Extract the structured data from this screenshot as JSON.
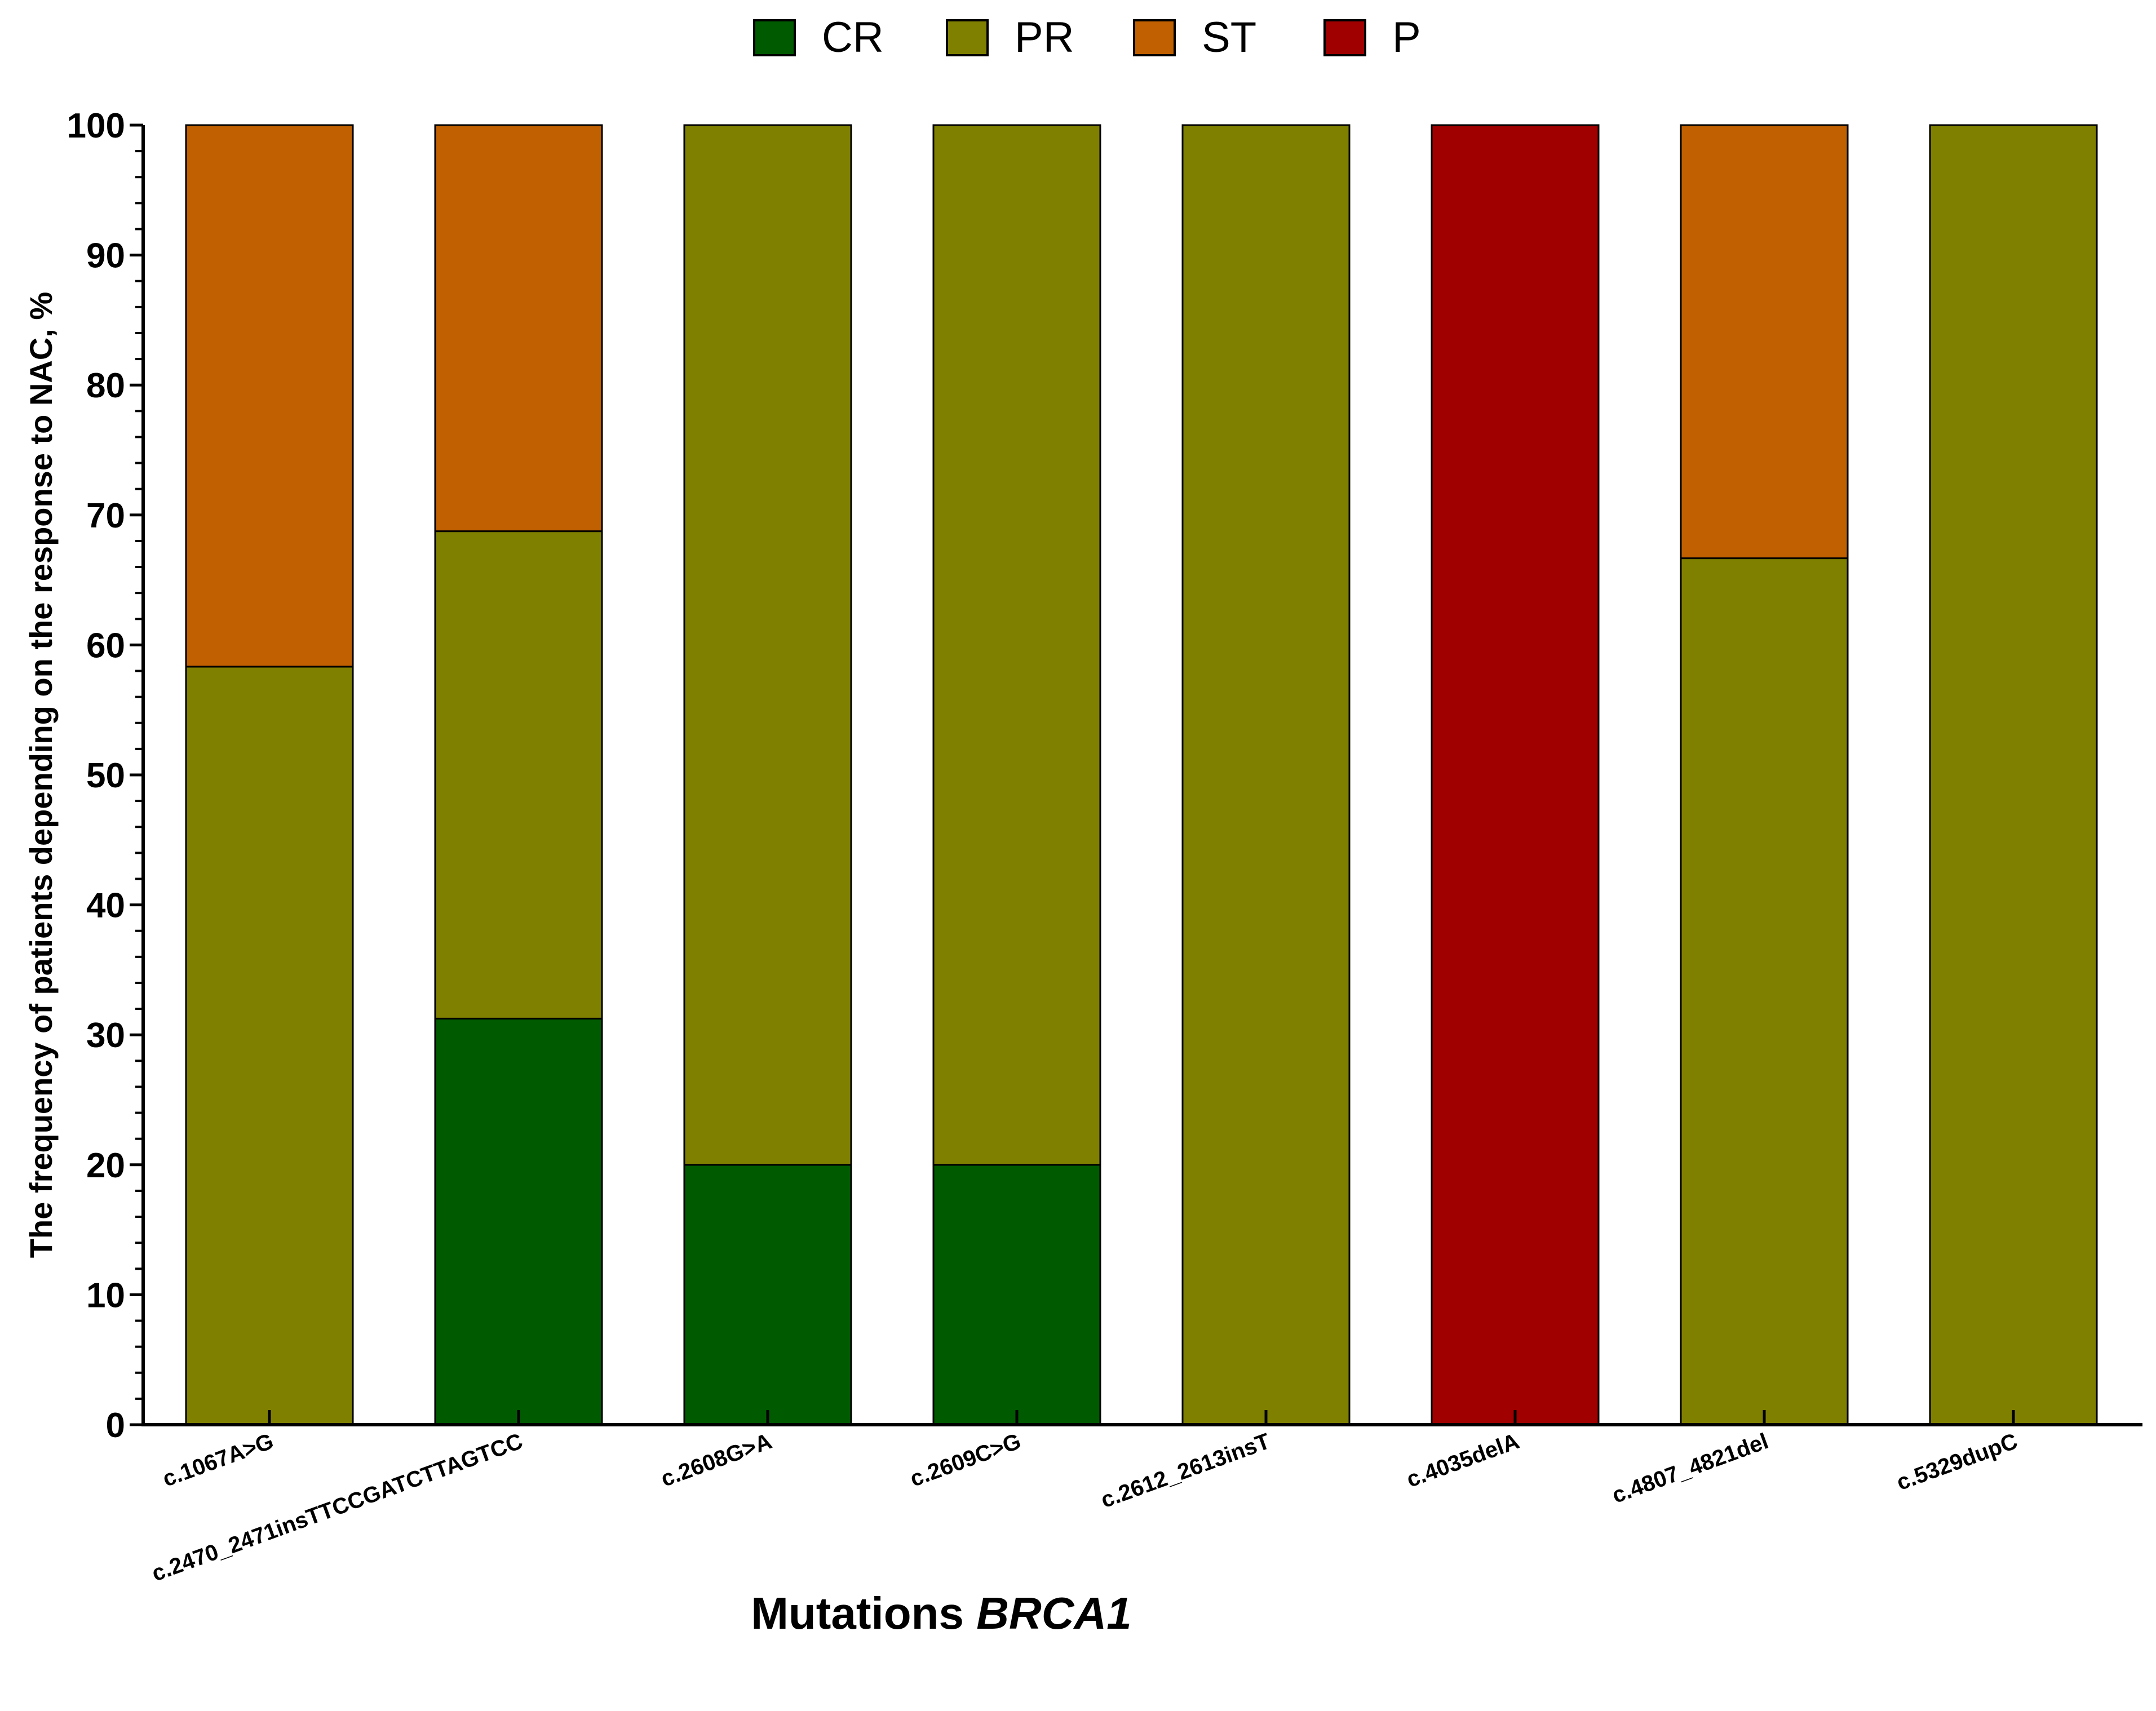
{
  "legend": [
    {
      "label": "CR",
      "color": "#005a00"
    },
    {
      "label": "PR",
      "color": "#808000"
    },
    {
      "label": "ST",
      "color": "#c06000"
    },
    {
      "label": "P",
      "color": "#a00000"
    }
  ],
  "chart_data": {
    "type": "bar",
    "stacked": true,
    "title": "",
    "xlabel": "Mutations",
    "xlabel_italic": "BRCA1",
    "ylabel": "The frequency of patients depending on the response to NAC, %",
    "ylim": [
      0,
      100
    ],
    "yticks": [
      "0",
      "10",
      "20",
      "30",
      "40",
      "50",
      "60",
      "70",
      "80",
      "90",
      "100"
    ],
    "categories": [
      "c.1067A>G",
      "c.2470_2471insTTCCGATCTTAGTCC",
      "c.2608G>A",
      "c.2609C>G",
      "c.2612_2613insT",
      "c.4035delA",
      "c.4807_4821del",
      "c.5329dupC"
    ],
    "series": [
      {
        "name": "CR",
        "color": "#005a00",
        "values": [
          0,
          31.25,
          20,
          20,
          0,
          0,
          0,
          0
        ]
      },
      {
        "name": "PR",
        "color": "#808000",
        "values": [
          58.33,
          37.5,
          80,
          80,
          100,
          0,
          66.67,
          100
        ]
      },
      {
        "name": "ST",
        "color": "#c06000",
        "values": [
          41.67,
          31.25,
          0,
          0,
          0,
          0,
          33.33,
          0
        ]
      },
      {
        "name": "P",
        "color": "#a00000",
        "values": [
          0,
          0,
          0,
          0,
          0,
          100,
          0,
          0
        ]
      }
    ],
    "legend_position": "top-center",
    "grid": false
  }
}
